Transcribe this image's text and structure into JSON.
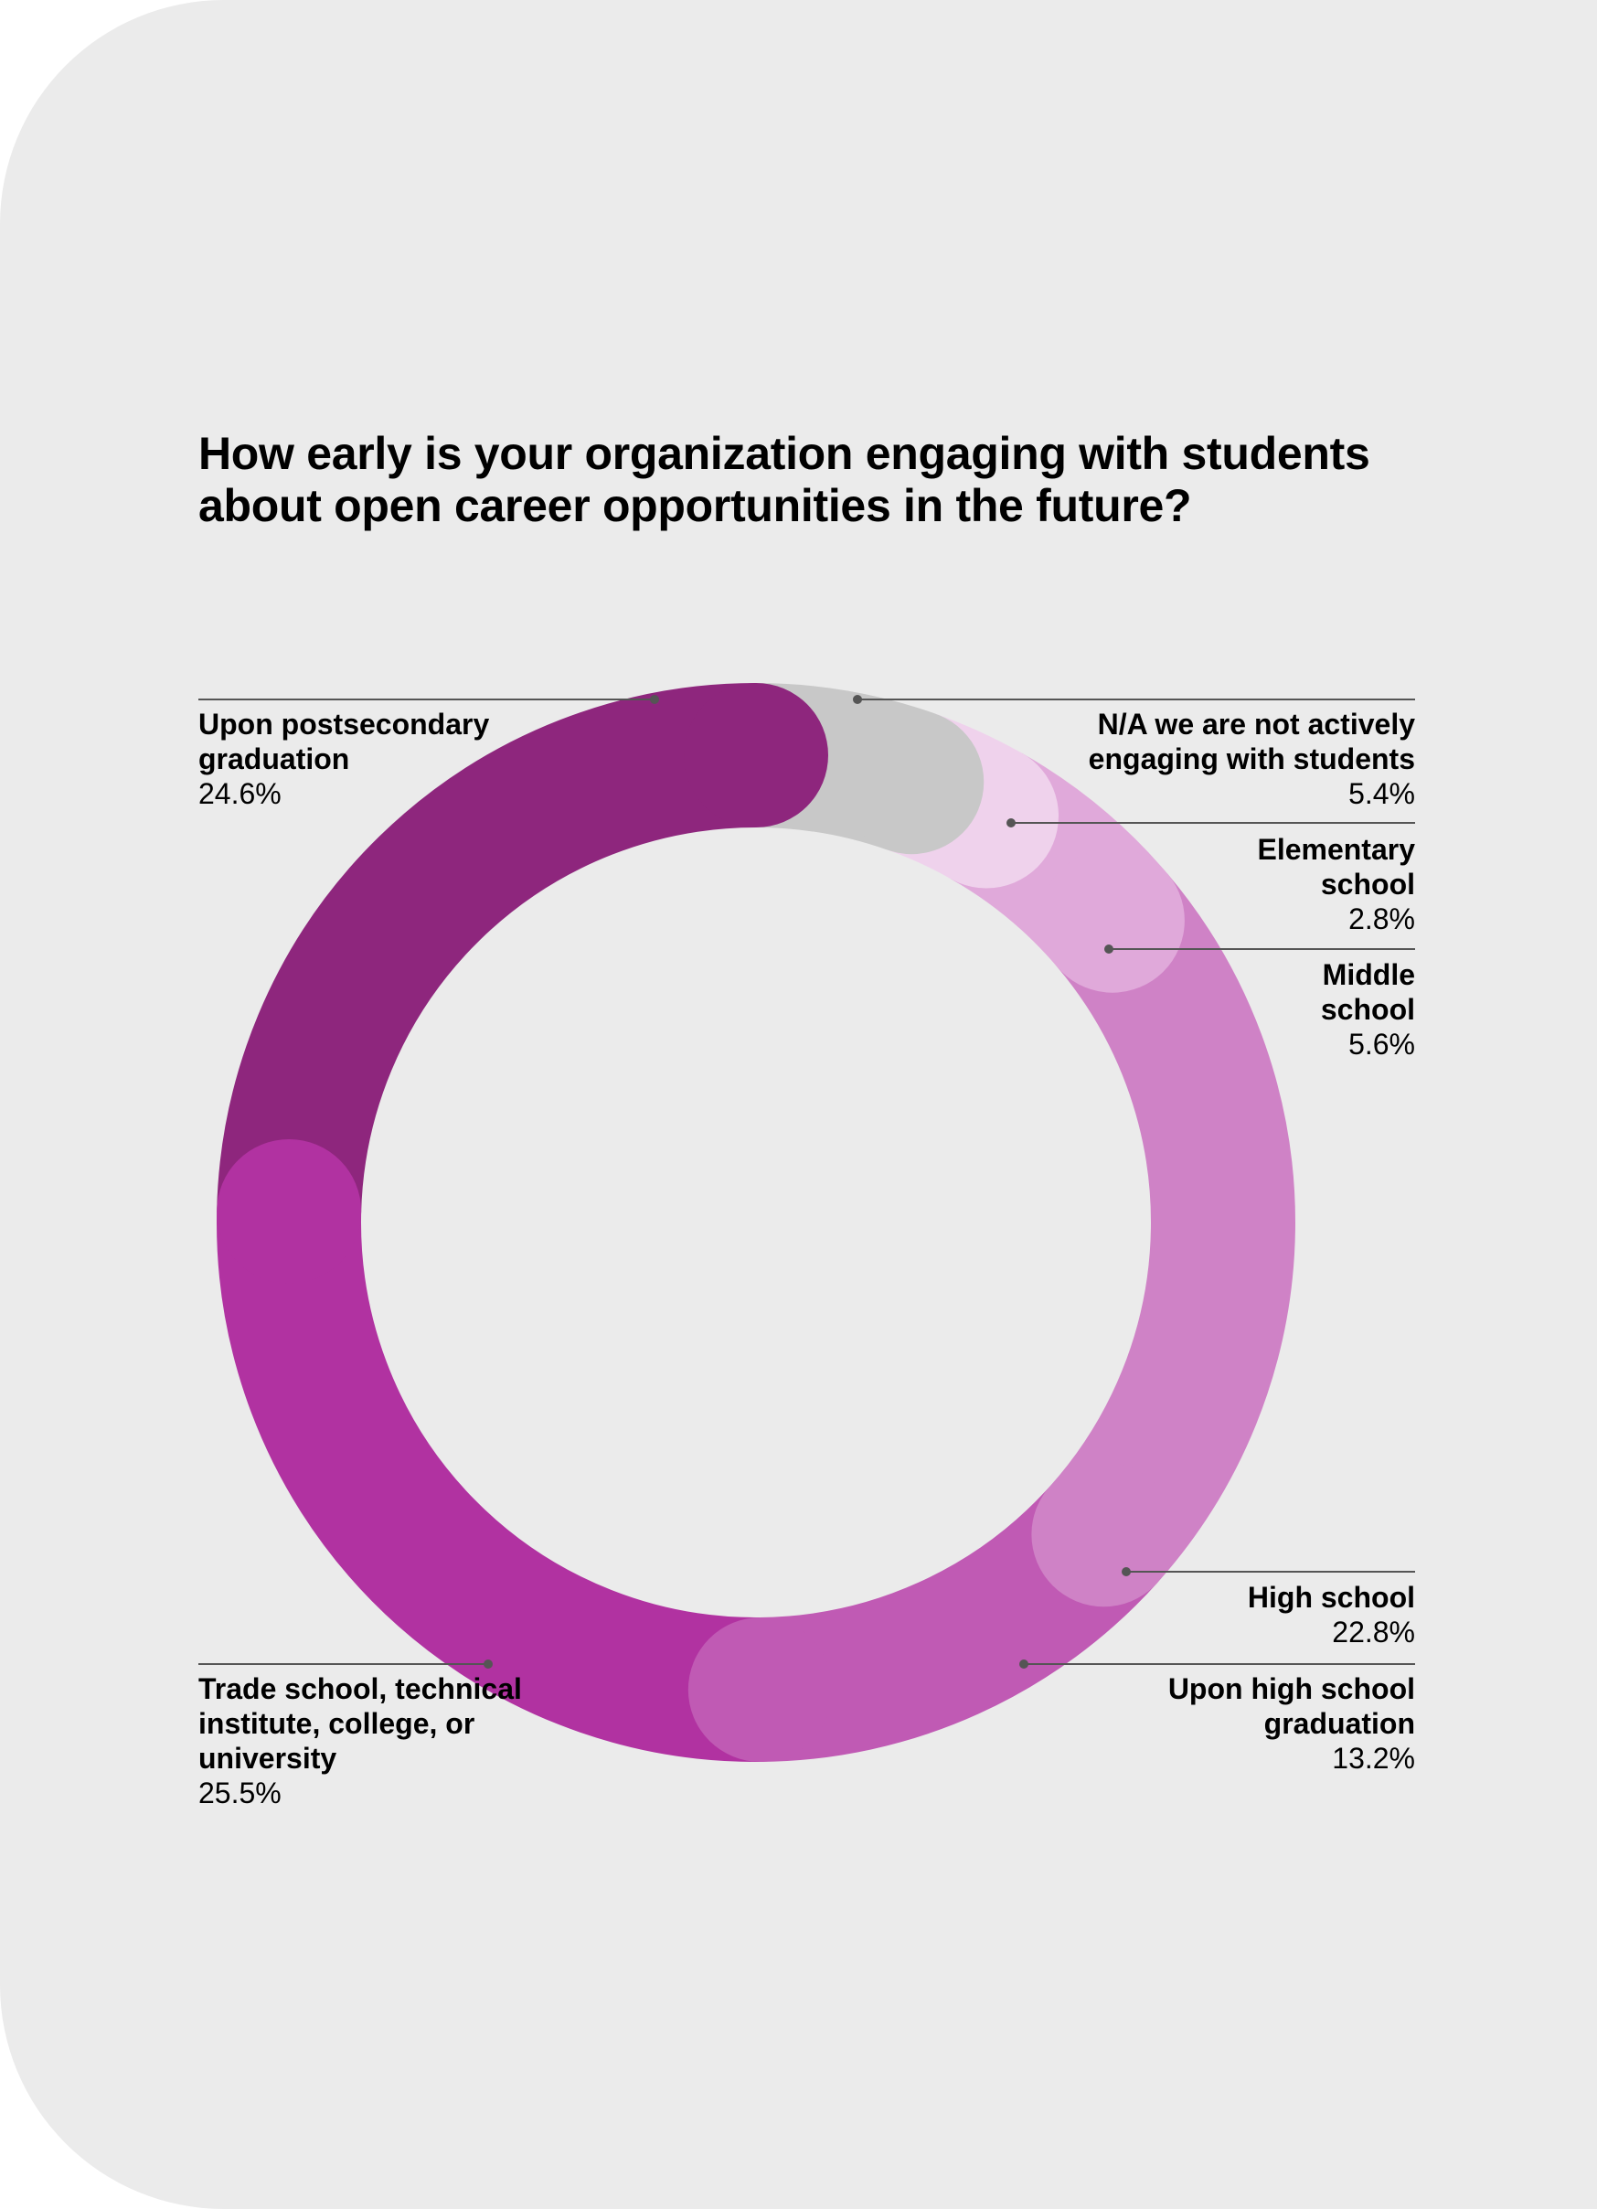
{
  "title": "How early is your organization engaging with students about open career opportunities in the future?",
  "chart_data": {
    "type": "pie",
    "donut": true,
    "title": "How early is your organization engaging with students about open career opportunities in the future?",
    "slices": [
      {
        "key": "na",
        "label": "N/A we are not actively engaging with students",
        "value": 5.4,
        "value_label": "5.4%",
        "color": "#c8c8c8"
      },
      {
        "key": "elementary",
        "label": "Elementary school",
        "value": 2.8,
        "value_label": "2.8%",
        "color": "#efd2ec"
      },
      {
        "key": "middle",
        "label": "Middle school",
        "value": 5.6,
        "value_label": "5.6%",
        "color": "#e0a9da"
      },
      {
        "key": "high",
        "label": "High school",
        "value": 22.8,
        "value_label": "22.8%",
        "color": "#cf82c6"
      },
      {
        "key": "upon_high",
        "label": "Upon high school graduation",
        "value": 13.2,
        "value_label": "13.2%",
        "color": "#c05ab4"
      },
      {
        "key": "trade",
        "label": "Trade school, technical institute, college, or university",
        "value": 25.5,
        "value_label": "25.5%",
        "color": "#b132a1"
      },
      {
        "key": "postsecondary",
        "label": "Upon postsecondary graduation",
        "value": 24.6,
        "value_label": "24.6%",
        "color": "#8e267d"
      }
    ],
    "unit": "%"
  }
}
